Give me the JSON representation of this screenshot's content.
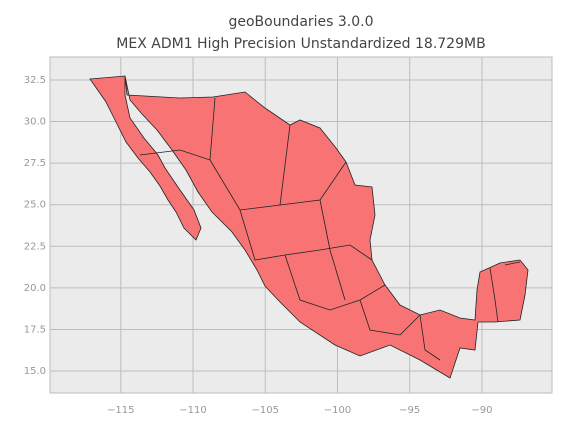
{
  "chart_data": {
    "type": "map",
    "title": "geoBoundaries 3.0.0",
    "subtitle": "MEX ADM1 High Precision Unstandardized 18.729MB",
    "xlim": [
      -119.9,
      -85.15
    ],
    "ylim": [
      13.68,
      33.88
    ],
    "xticks": [
      {
        "value": -115,
        "label": "−115"
      },
      {
        "value": -110,
        "label": "−110"
      },
      {
        "value": -105,
        "label": "−105"
      },
      {
        "value": -100,
        "label": "−100"
      },
      {
        "value": -95,
        "label": "−95"
      },
      {
        "value": -90,
        "label": "−90"
      }
    ],
    "yticks": [
      {
        "value": 32.5,
        "label": "32.5"
      },
      {
        "value": 30,
        "label": "30.0"
      },
      {
        "value": 27.5,
        "label": "27.5"
      },
      {
        "value": 25,
        "label": "25.0"
      },
      {
        "value": 22.5,
        "label": "22.5"
      },
      {
        "value": 20,
        "label": "20.0"
      },
      {
        "value": 17.5,
        "label": "17.5"
      },
      {
        "value": 15,
        "label": "15.0"
      }
    ],
    "grid": true,
    "color": "#f87474"
  }
}
